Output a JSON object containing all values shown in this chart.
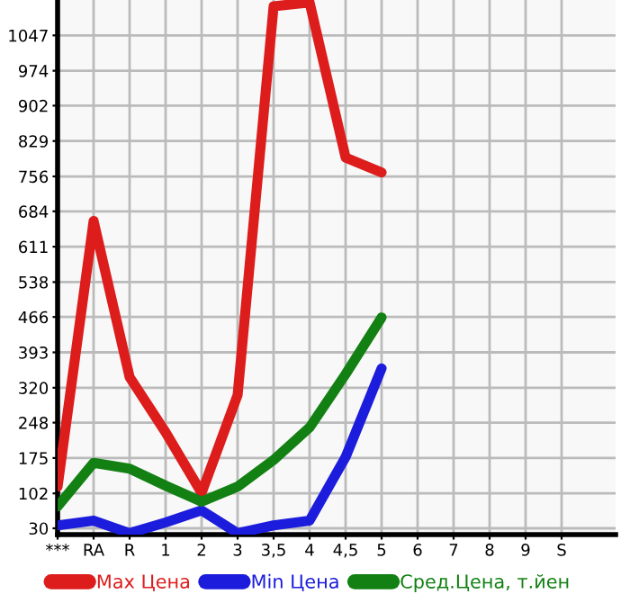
{
  "chart_data": {
    "type": "line",
    "categories": [
      "***",
      "RA",
      "R",
      "1",
      "2",
      "3",
      "3,5",
      "4",
      "4,5",
      "5",
      "6",
      "7",
      "8",
      "9",
      "S"
    ],
    "series": [
      {
        "name": "Max Цена",
        "color": "#dd1c1c",
        "values": [
          116,
          664,
          342,
          228,
          103,
          305,
          1107,
          1115,
          795,
          764,
          null,
          null,
          null,
          null,
          null
        ]
      },
      {
        "name": "Min Цена",
        "color": "#1c1cdd",
        "values": [
          36,
          46,
          20,
          42,
          67,
          20,
          36,
          46,
          177,
          360,
          null,
          null,
          null,
          null,
          null
        ]
      },
      {
        "name": "Сред.Цена, т.йен",
        "color": "#128012",
        "values": [
          75,
          165,
          153,
          118,
          85,
          116,
          171,
          238,
          348,
          465,
          null,
          null,
          null,
          null,
          null
        ]
      }
    ],
    "ylim": [
      17,
      1120
    ],
    "yticks": [
      30,
      102,
      175,
      248,
      320,
      393,
      466,
      538,
      611,
      684,
      756,
      829,
      902,
      974,
      1047
    ],
    "grid": true,
    "legend": "bottom",
    "marker": "none",
    "line_style": "solid"
  }
}
